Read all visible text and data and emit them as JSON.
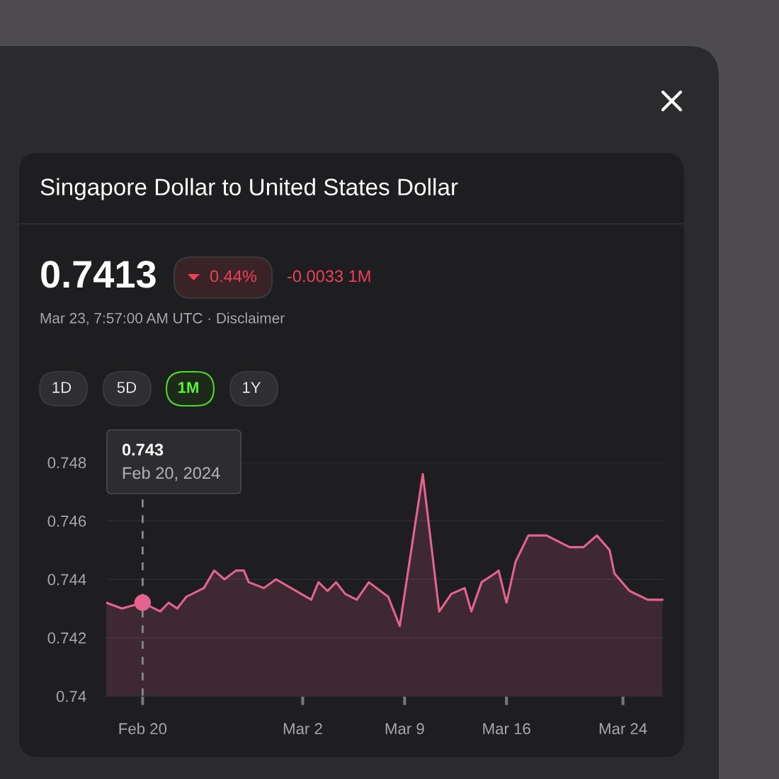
{
  "chart_data": {
    "type": "area",
    "title": "Singapore Dollar to United States Dollar",
    "subtitle": "Mar 23, 7:57:00 AM UTC · Disclaimer",
    "annotations": [
      "0.7413",
      "0.44%",
      "-0.0033 1M",
      "1D",
      "5D",
      "1M",
      "1Y",
      "0.743",
      "Feb 20, 2024"
    ],
    "x": [
      "2024-02-17T12:00",
      "2024-02-18T14:00",
      "2024-02-20T00:00",
      "2024-02-21T05:00",
      "2024-02-21T19:00",
      "2024-02-22T09:00",
      "2024-02-23T00:00",
      "2024-02-24T05:00",
      "2024-02-24T22:00",
      "2024-02-25T15:00",
      "2024-02-26T10:00",
      "2024-02-26T23:00",
      "2024-02-27T07:00",
      "2024-02-28T08:00",
      "2024-02-29T04:00",
      "2024-03-02T14:00",
      "2024-03-03T02:00",
      "2024-03-03T17:00",
      "2024-03-04T07:00",
      "2024-03-04T22:00",
      "2024-03-05T17:00",
      "2024-03-06T13:00",
      "2024-03-07T21:00",
      "2024-03-08T16:00",
      "2024-03-10T06:00",
      "2024-03-11T09:00",
      "2024-03-12T05:00",
      "2024-03-13T03:00",
      "2024-03-13T14:00",
      "2024-03-14T07:00",
      "2024-03-15T05:00",
      "2024-03-15T11:00",
      "2024-03-16T00:00",
      "2024-03-16T15:00",
      "2024-03-17T12:00",
      "2024-03-18T18:00",
      "2024-03-20T08:00",
      "2024-03-21T07:00",
      "2024-03-22T05:00",
      "2024-03-23T02:00",
      "2024-03-23T10:00",
      "2024-03-24T11:00",
      "2024-03-25T17:00",
      "2024-03-26T17:00"
    ],
    "series": [
      {
        "color": "#e5648f",
        "values": [
          0.7432,
          0.743,
          0.7432,
          0.7429,
          0.7432,
          0.743,
          0.7434,
          0.7437,
          0.7443,
          0.744,
          0.7443,
          0.7443,
          0.7439,
          0.7437,
          0.744,
          0.7433,
          0.7439,
          0.7436,
          0.7439,
          0.7435,
          0.7433,
          0.7439,
          0.7434,
          0.7424,
          0.7476,
          0.7429,
          0.7435,
          0.7437,
          0.7429,
          0.7439,
          0.7442,
          0.7443,
          0.7432,
          0.7446,
          0.7455,
          0.7455,
          0.7451,
          0.7451,
          0.7455,
          0.745,
          0.7442,
          0.7436,
          0.7433,
          0.7433
        ]
      },
      {
        "type": "scatter",
        "marker": "circle",
        "color": "#e5648f",
        "x": [
          "2024-02-20T00:00"
        ],
        "values": [
          0.7432
        ]
      }
    ],
    "xlim": [
      "2024-02-17T12:00",
      "2024-03-26T19:00"
    ],
    "xticks": [
      {
        "value": "2024-02-20",
        "label": "Feb 20"
      },
      {
        "value": "2024-03-02",
        "label": "Mar 2"
      },
      {
        "value": "2024-03-09",
        "label": "Mar 9"
      },
      {
        "value": "2024-03-16",
        "label": "Mar 16"
      },
      {
        "value": "2024-03-24",
        "label": "Mar 24"
      }
    ],
    "ylim": [
      0.74,
      0.748
    ],
    "yticks": [
      {
        "value": 0.74,
        "label": "0.74"
      },
      0.742,
      0.744,
      0.746,
      0.748
    ],
    "grid": "y",
    "ref_lines": [
      {
        "axis": "x",
        "value": "2024-02-20",
        "color": "#8a898d",
        "line_style": "dashed"
      }
    ]
  }
}
